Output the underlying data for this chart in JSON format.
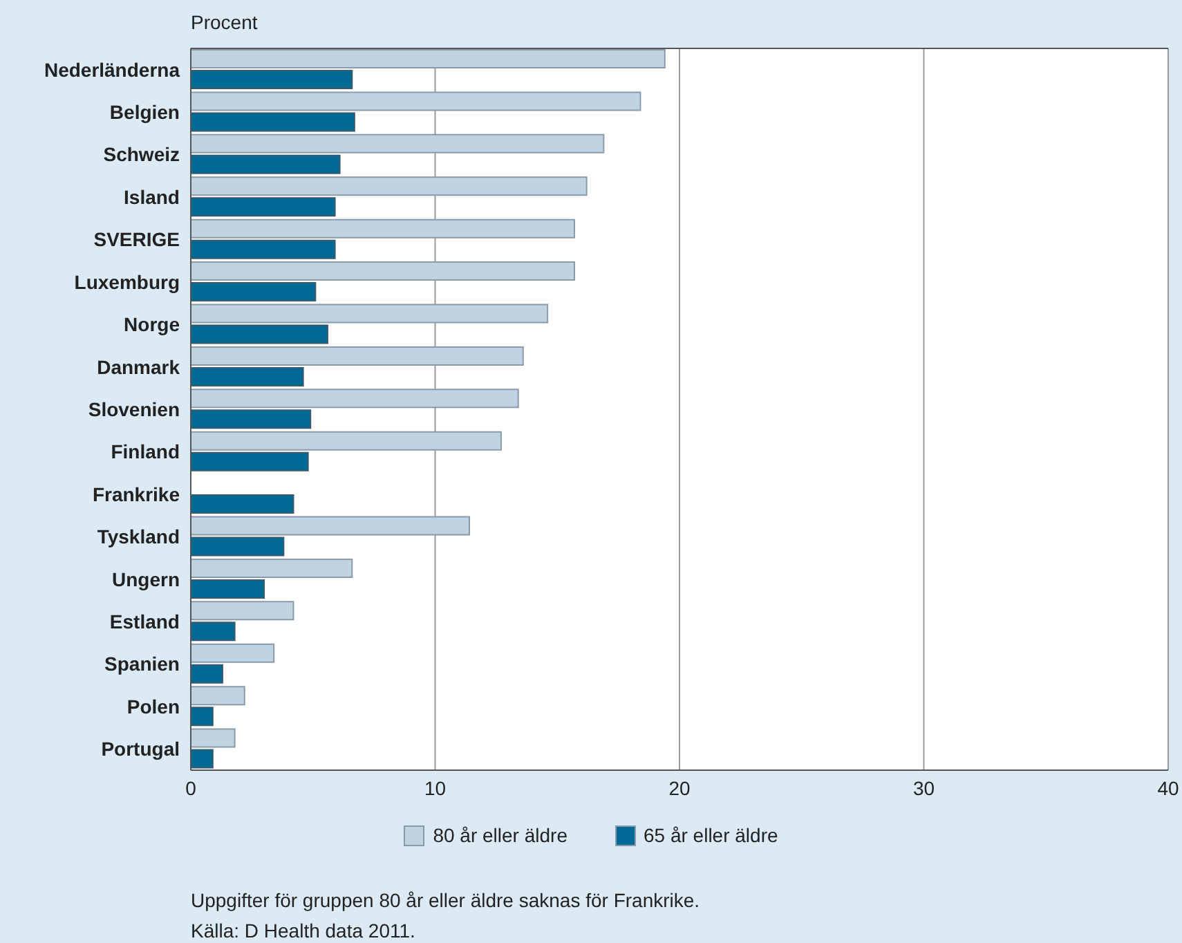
{
  "chart_data": {
    "type": "bar",
    "orientation": "horizontal",
    "xlabel": "Procent",
    "categories": [
      "Nederländerna",
      "Belgien",
      "Schweiz",
      "Island",
      "SVERIGE",
      "Luxemburg",
      "Norge",
      "Danmark",
      "Slovenien",
      "Finland",
      "Frankrike",
      "Tyskland",
      "Ungern",
      "Estland",
      "Spanien",
      "Polen",
      "Portugal"
    ],
    "series": [
      {
        "name": "80 år eller äldre",
        "color": "#c0d3e3",
        "values": [
          19.4,
          18.4,
          16.9,
          16.2,
          15.7,
          15.7,
          14.6,
          13.6,
          13.4,
          12.7,
          null,
          11.4,
          6.6,
          4.2,
          3.4,
          2.2,
          1.8
        ]
      },
      {
        "name": "65 år eller äldre",
        "color": "#006994",
        "values": [
          6.6,
          6.7,
          6.1,
          5.9,
          5.9,
          5.1,
          5.6,
          4.6,
          4.9,
          4.8,
          4.2,
          3.8,
          3.0,
          1.8,
          1.3,
          0.9,
          0.9
        ]
      }
    ],
    "xlim": [
      0,
      40
    ],
    "xticks": [
      0,
      10,
      20,
      30,
      40
    ],
    "grid": "x",
    "legend": "bottom",
    "annotations": [
      "Uppgifter för gruppen 80 år eller äldre saknas för Frankrike.",
      "Källa: D Health data 2011."
    ]
  }
}
